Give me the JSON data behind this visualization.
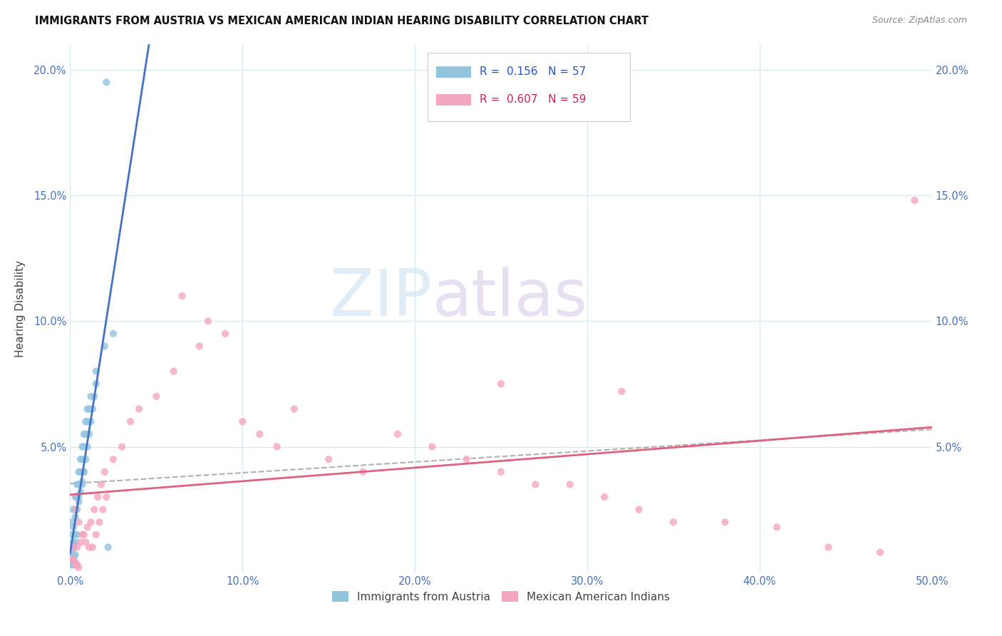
{
  "title": "IMMIGRANTS FROM AUSTRIA VS MEXICAN AMERICAN INDIAN HEARING DISABILITY CORRELATION CHART",
  "source": "Source: ZipAtlas.com",
  "ylabel": "Hearing Disability",
  "xlim": [
    0.0,
    0.5
  ],
  "ylim": [
    0.0,
    0.21
  ],
  "xticks": [
    0.0,
    0.1,
    0.2,
    0.3,
    0.4,
    0.5
  ],
  "xticklabels": [
    "0.0%",
    "10.0%",
    "20.0%",
    "30.0%",
    "40.0%",
    "50.0%"
  ],
  "yticks": [
    0.0,
    0.05,
    0.1,
    0.15,
    0.2
  ],
  "yticklabels": [
    "",
    "5.0%",
    "10.0%",
    "15.0%",
    "20.0%"
  ],
  "r1": 0.156,
  "n1": 57,
  "r2": 0.607,
  "n2": 59,
  "color_blue": "#92c5de",
  "color_pink": "#f4a6c0",
  "line_blue": "#4472c4",
  "line_pink": "#e06080",
  "line_gray": "#b0b0b0",
  "blue_x": [
    0.005,
    0.007,
    0.008,
    0.009,
    0.01,
    0.011,
    0.012,
    0.013,
    0.014,
    0.015,
    0.003,
    0.004,
    0.005,
    0.006,
    0.007,
    0.008,
    0.009,
    0.01,
    0.011,
    0.012,
    0.001,
    0.002,
    0.003,
    0.004,
    0.005,
    0.006,
    0.007,
    0.008,
    0.009,
    0.01,
    0.001,
    0.002,
    0.003,
    0.004,
    0.005,
    0.006,
    0.007,
    0.008,
    0.002,
    0.003,
    0.001,
    0.002,
    0.003,
    0.004,
    0.001,
    0.002,
    0.003,
    0.015,
    0.02,
    0.025,
    0.001,
    0.002,
    0.001,
    0.002,
    0.003,
    0.021,
    0.022
  ],
  "blue_y": [
    0.03,
    0.035,
    0.04,
    0.045,
    0.05,
    0.055,
    0.06,
    0.065,
    0.07,
    0.075,
    0.025,
    0.03,
    0.035,
    0.04,
    0.045,
    0.05,
    0.055,
    0.06,
    0.065,
    0.07,
    0.02,
    0.025,
    0.03,
    0.035,
    0.04,
    0.045,
    0.05,
    0.055,
    0.06,
    0.065,
    0.015,
    0.018,
    0.022,
    0.025,
    0.028,
    0.032,
    0.036,
    0.04,
    0.012,
    0.015,
    0.008,
    0.01,
    0.012,
    0.015,
    0.005,
    0.006,
    0.007,
    0.08,
    0.09,
    0.095,
    0.004,
    0.004,
    0.003,
    0.003,
    0.003,
    0.195,
    0.01
  ],
  "pink_x": [
    0.003,
    0.005,
    0.007,
    0.009,
    0.011,
    0.013,
    0.015,
    0.017,
    0.019,
    0.021,
    0.002,
    0.004,
    0.006,
    0.008,
    0.01,
    0.012,
    0.014,
    0.016,
    0.018,
    0.02,
    0.025,
    0.03,
    0.035,
    0.04,
    0.05,
    0.06,
    0.065,
    0.075,
    0.08,
    0.09,
    0.1,
    0.11,
    0.12,
    0.13,
    0.15,
    0.17,
    0.19,
    0.21,
    0.23,
    0.25,
    0.27,
    0.29,
    0.31,
    0.33,
    0.35,
    0.38,
    0.41,
    0.44,
    0.47,
    0.49,
    0.001,
    0.002,
    0.003,
    0.003,
    0.004,
    0.004,
    0.005,
    0.25,
    0.32
  ],
  "pink_y": [
    0.025,
    0.02,
    0.015,
    0.012,
    0.01,
    0.01,
    0.015,
    0.02,
    0.025,
    0.03,
    0.01,
    0.01,
    0.012,
    0.015,
    0.018,
    0.02,
    0.025,
    0.03,
    0.035,
    0.04,
    0.045,
    0.05,
    0.06,
    0.065,
    0.07,
    0.08,
    0.11,
    0.09,
    0.1,
    0.095,
    0.06,
    0.055,
    0.05,
    0.065,
    0.045,
    0.04,
    0.055,
    0.05,
    0.045,
    0.04,
    0.035,
    0.035,
    0.03,
    0.025,
    0.02,
    0.02,
    0.018,
    0.01,
    0.008,
    0.148,
    0.005,
    0.005,
    0.004,
    0.003,
    0.003,
    0.003,
    0.002,
    0.075,
    0.072
  ]
}
